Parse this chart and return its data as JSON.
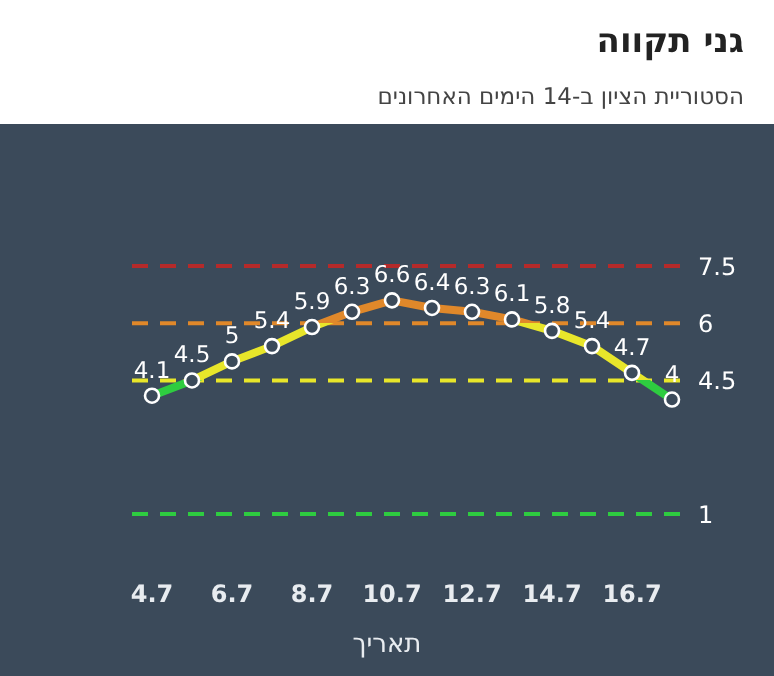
{
  "chart_data": {
    "type": "line",
    "title": "גני תקווה",
    "subtitle": "הסטוריית הציון ב-14 הימים האחרונים",
    "xlabel": "תאריך",
    "categories": [
      "4.7",
      null,
      "6.7",
      null,
      "8.7",
      null,
      "10.7",
      null,
      "12.7",
      null,
      "14.7",
      null,
      "16.7",
      null
    ],
    "series": [
      {
        "values": [
          4.1,
          4.5,
          5,
          5.4,
          5.9,
          6.3,
          6.6,
          6.4,
          6.3,
          6.1,
          5.8,
          5.4,
          4.7,
          4
        ]
      }
    ],
    "tick_labels": "x",
    "marker": "circle",
    "line_style": "solid",
    "data_labels": true,
    "ref_lines": [
      {
        "axis": "y",
        "value": 7.5,
        "label": "7.5",
        "color": "#b52a2a",
        "line_style": "dashed"
      },
      {
        "axis": "y",
        "value": 6,
        "label": "6",
        "color": "#e0882a",
        "line_style": "dashed"
      },
      {
        "axis": "y",
        "value": 4.5,
        "label": "4.5",
        "color": "#e8e62a",
        "line_style": "dashed"
      },
      {
        "axis": "y",
        "value": 1,
        "label": "1",
        "color": "#2ecc40",
        "line_style": "dashed"
      }
    ]
  }
}
